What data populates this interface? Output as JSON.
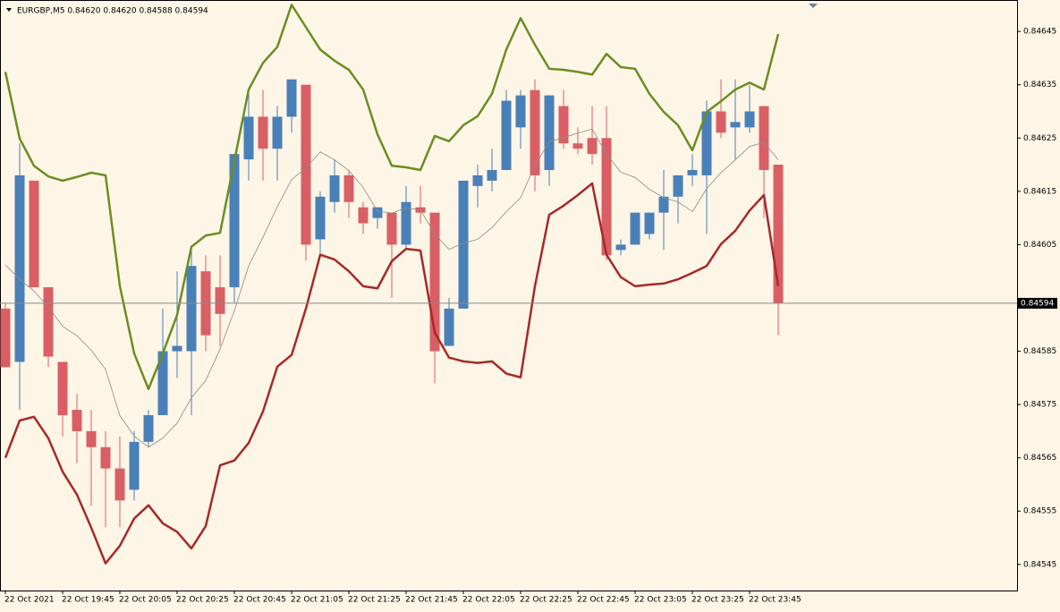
{
  "chart_data": {
    "type": "candlestick",
    "title": "EURGBP,M5  0.84620 0.84620 0.84588 0.84594",
    "categories": [
      "22 Oct 2021",
      null,
      null,
      null,
      "22 Oct 19:45",
      null,
      null,
      null,
      "22 Oct 20:05",
      null,
      null,
      null,
      "22 Oct 20:25",
      null,
      null,
      null,
      "22 Oct 20:45",
      null,
      null,
      null,
      "22 Oct 21:05",
      null,
      null,
      null,
      "22 Oct 21:25",
      null,
      null,
      null,
      "22 Oct 21:45",
      null,
      null,
      null,
      "22 Oct 22:05",
      null,
      null,
      null,
      "22 Oct 22:25",
      null,
      null,
      null,
      "22 Oct 22:45",
      null,
      null,
      null,
      "22 Oct 23:05",
      null,
      null,
      null,
      "22 Oct 23:25",
      null,
      null,
      null,
      "22 Oct 23:45",
      null,
      null
    ],
    "open": [
      0.84593,
      0.84583,
      0.84617,
      0.84597,
      0.84583,
      0.84574,
      0.8457,
      0.84567,
      0.84563,
      0.84559,
      0.84568,
      0.84573,
      0.84585,
      0.84585,
      0.846,
      0.84597,
      0.84597,
      0.84621,
      0.84629,
      0.84623,
      0.84629,
      0.84635,
      0.84606,
      0.84613,
      0.84618,
      0.84612,
      0.8461,
      0.84611,
      0.84605,
      0.84612,
      0.84611,
      0.84586,
      0.84593,
      0.84616,
      0.84617,
      0.84619,
      0.84627,
      0.84634,
      0.84619,
      0.84631,
      0.84624,
      0.84625,
      0.84625,
      0.84604,
      0.84605,
      0.84607,
      0.84611,
      0.84614,
      0.84618,
      0.84618,
      0.8463,
      0.84627,
      0.84627,
      0.84631,
      0.8462
    ],
    "high": [
      0.84594,
      0.84624,
      0.84617,
      0.84597,
      0.84583,
      0.84577,
      0.84574,
      0.8457,
      0.84569,
      0.8457,
      0.84574,
      0.84593,
      0.846,
      0.84604,
      0.84603,
      0.84603,
      0.84622,
      0.84634,
      0.84634,
      0.84631,
      0.84636,
      0.84635,
      0.84615,
      0.84621,
      0.84619,
      0.84613,
      0.84612,
      0.84611,
      0.84616,
      0.84616,
      0.84611,
      0.84595,
      0.84617,
      0.8462,
      0.84623,
      0.84634,
      0.84634,
      0.84636,
      0.84633,
      0.84634,
      0.84627,
      0.84631,
      0.84631,
      0.84606,
      0.84611,
      0.84611,
      0.84619,
      0.84618,
      0.84622,
      0.84632,
      0.84636,
      0.84636,
      0.84635,
      0.84631,
      0.8462
    ],
    "low": [
      0.84582,
      0.84574,
      0.84597,
      0.84582,
      0.84569,
      0.84564,
      0.84556,
      0.84552,
      0.84552,
      0.84557,
      0.84567,
      0.84573,
      0.8458,
      0.84573,
      0.84585,
      0.84586,
      0.84594,
      0.84617,
      0.84617,
      0.84617,
      0.84626,
      0.84602,
      0.84603,
      0.84611,
      0.8461,
      0.84607,
      0.84608,
      0.84595,
      0.84604,
      0.84609,
      0.84579,
      0.84586,
      0.84593,
      0.84612,
      0.84615,
      0.84619,
      0.84623,
      0.84615,
      0.84616,
      0.84623,
      0.84622,
      0.8462,
      0.84602,
      0.84603,
      0.84605,
      0.84606,
      0.84604,
      0.84609,
      0.84616,
      0.84607,
      0.84625,
      0.84621,
      0.84626,
      0.8461,
      0.84588
    ],
    "close": [
      0.84582,
      0.84618,
      0.84597,
      0.84584,
      0.84573,
      0.8457,
      0.84567,
      0.84563,
      0.84557,
      0.84568,
      0.84573,
      0.84585,
      0.84586,
      0.84601,
      0.84588,
      0.84592,
      0.84622,
      0.84629,
      0.84623,
      0.84629,
      0.84636,
      0.84605,
      0.84614,
      0.84618,
      0.84613,
      0.84609,
      0.84612,
      0.84605,
      0.84613,
      0.84611,
      0.84585,
      0.84593,
      0.84617,
      0.84618,
      0.84619,
      0.84632,
      0.84633,
      0.84618,
      0.84633,
      0.84624,
      0.84623,
      0.84622,
      0.84603,
      0.84605,
      0.84611,
      0.84611,
      0.84614,
      0.84618,
      0.84619,
      0.8463,
      0.84626,
      0.84628,
      0.8463,
      0.84619,
      0.84594
    ],
    "bands": {
      "upper": [
        0.846374,
        0.846249,
        0.846198,
        0.846178,
        0.84617,
        0.846177,
        0.846185,
        0.84618,
        0.845972,
        0.845846,
        0.845779,
        0.845846,
        0.845918,
        0.846046,
        0.846067,
        0.846072,
        0.846207,
        0.846341,
        0.846391,
        0.846421,
        0.8465,
        0.846458,
        0.846416,
        0.846395,
        0.846378,
        0.846341,
        0.846257,
        0.846198,
        0.846195,
        0.84619,
        0.846254,
        0.846244,
        0.846274,
        0.846291,
        0.846333,
        0.846416,
        0.846475,
        0.846425,
        0.84638,
        0.846378,
        0.846374,
        0.846369,
        0.846408,
        0.846383,
        0.84638,
        0.846333,
        0.846299,
        0.846274,
        0.846227,
        0.846299,
        0.846319,
        0.846341,
        0.846354,
        0.846341,
        0.846445
      ],
      "middle": [
        0.846012,
        0.845985,
        0.845963,
        0.845933,
        0.845897,
        0.845879,
        0.845852,
        0.845816,
        0.845729,
        0.845691,
        0.84567,
        0.845687,
        0.845715,
        0.845763,
        0.845795,
        0.845854,
        0.845926,
        0.84601,
        0.846064,
        0.846121,
        0.846172,
        0.846194,
        0.846224,
        0.846209,
        0.846189,
        0.846157,
        0.846113,
        0.846109,
        0.846119,
        0.846115,
        0.84607,
        0.846041,
        0.846053,
        0.84606,
        0.846082,
        0.846112,
        0.846138,
        0.846199,
        0.846243,
        0.846251,
        0.846259,
        0.846267,
        0.84622,
        0.846186,
        0.846176,
        0.846154,
        0.846138,
        0.84613,
        0.846112,
        0.846155,
        0.846185,
        0.846209,
        0.846234,
        0.846242,
        0.846209
      ],
      "lower": [
        0.84565,
        0.84572,
        0.845727,
        0.845687,
        0.845624,
        0.845581,
        0.845519,
        0.845452,
        0.845485,
        0.845536,
        0.845561,
        0.845527,
        0.845511,
        0.84548,
        0.845522,
        0.845636,
        0.845645,
        0.845678,
        0.845737,
        0.845821,
        0.845843,
        0.84593,
        0.846031,
        0.846022,
        0.846,
        0.845972,
        0.845968,
        0.846019,
        0.846042,
        0.846039,
        0.845885,
        0.845838,
        0.845831,
        0.845828,
        0.845831,
        0.845808,
        0.845801,
        0.845972,
        0.846106,
        0.846123,
        0.846143,
        0.846165,
        0.846031,
        0.845989,
        0.845972,
        0.845975,
        0.845977,
        0.845985,
        0.845997,
        0.84601,
        0.846051,
        0.846076,
        0.846114,
        0.846143,
        0.845972
      ]
    },
    "band_colors": {
      "upper": "#6b8e23",
      "middle": "#8c8c8c",
      "lower": "#a52a2a"
    },
    "up_color": "#4a80b8",
    "down_color": "#d95f64",
    "current_price": 0.84594,
    "ylim": [
      0.845401,
      0.846509
    ],
    "yticks": [
      0.84545,
      0.84555,
      0.84565,
      0.84575,
      0.84585,
      0.84605,
      0.84615,
      0.84625,
      0.84635,
      0.84645
    ],
    "grid": false
  }
}
